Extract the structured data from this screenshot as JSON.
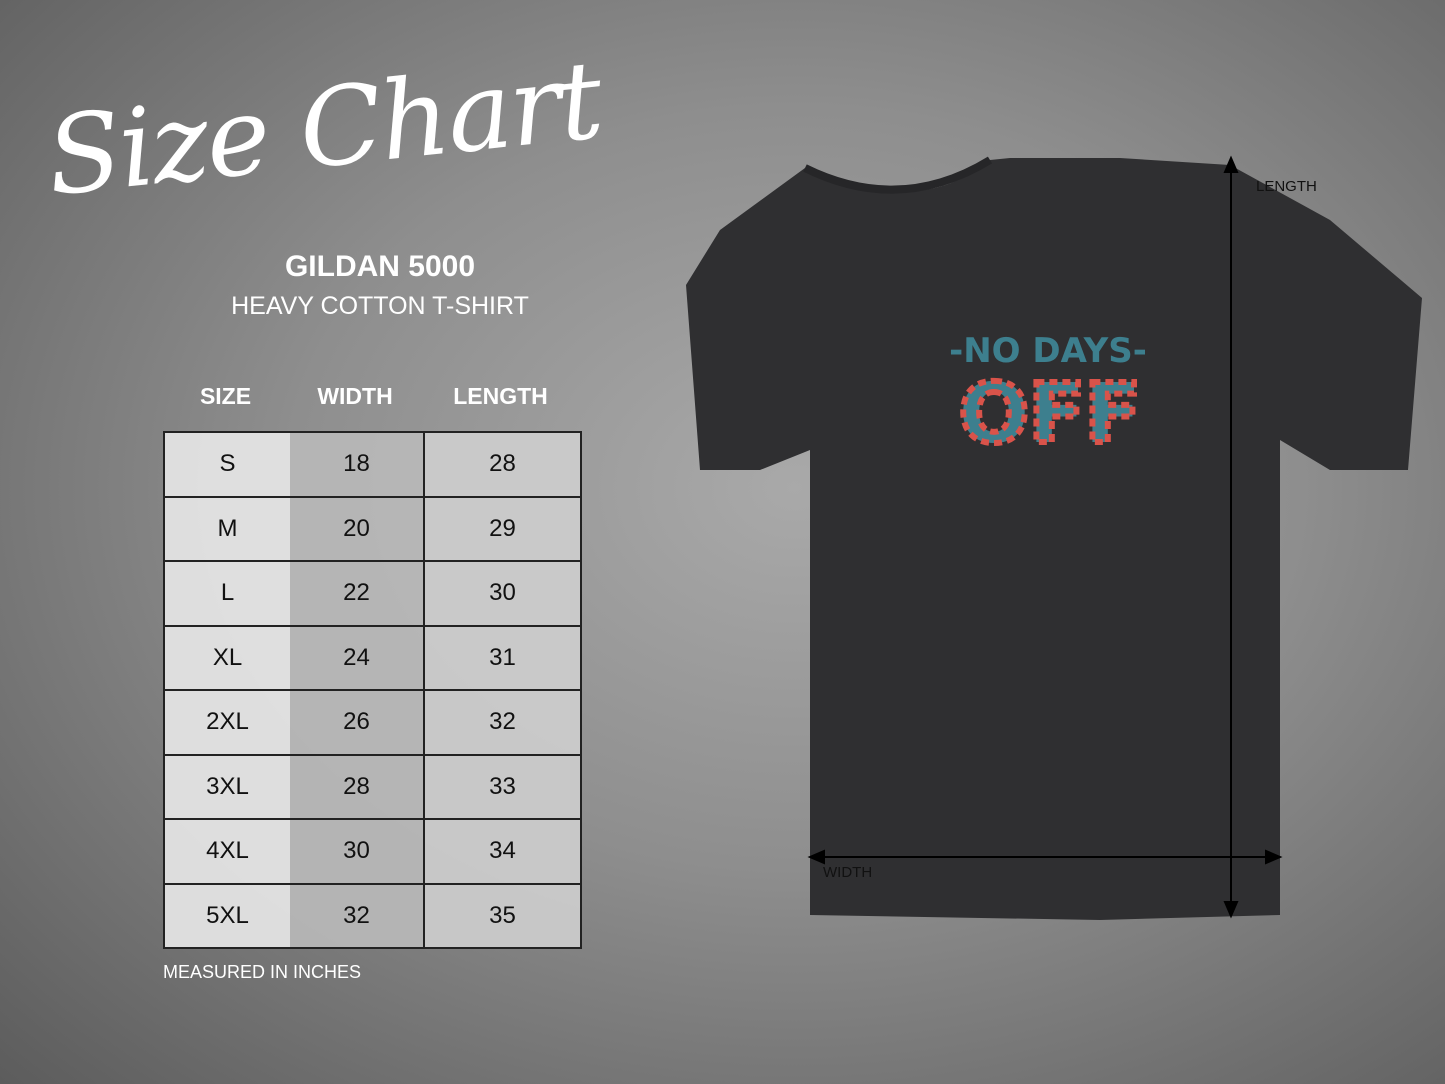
{
  "title": "Size Chart",
  "product": {
    "model": "GILDAN 5000",
    "name": "HEAVY COTTON T-SHIRT"
  },
  "table": {
    "headers": [
      "SIZE",
      "WIDTH",
      "LENGTH"
    ],
    "rows": [
      [
        "S",
        "18",
        "28"
      ],
      [
        "M",
        "20",
        "29"
      ],
      [
        "L",
        "22",
        "30"
      ],
      [
        "XL",
        "24",
        "31"
      ],
      [
        "2XL",
        "26",
        "32"
      ],
      [
        "3XL",
        "28",
        "33"
      ],
      [
        "4XL",
        "30",
        "34"
      ],
      [
        "5XL",
        "32",
        "35"
      ]
    ]
  },
  "note": "MEASURED IN INCHES",
  "shirt": {
    "print_line1": "-NO DAYS-",
    "print_line2": "OFF",
    "color": "#2f2f31",
    "print_teal": "#3d7f8e",
    "print_red": "#d9534a"
  },
  "measures": {
    "length_label": "LENGTH",
    "width_label": "WIDTH"
  }
}
